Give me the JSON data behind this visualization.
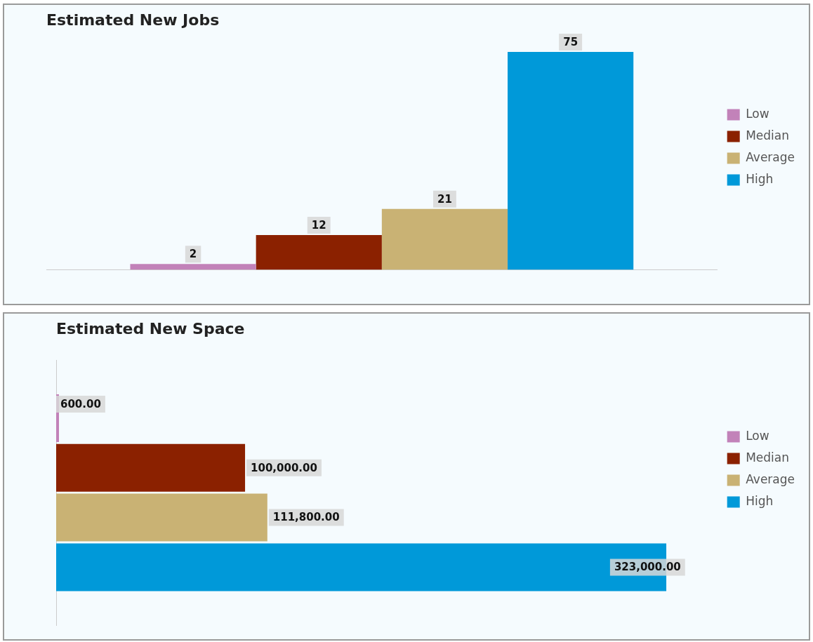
{
  "chart_data": [
    {
      "type": "bar",
      "title": "Estimated New Jobs",
      "categories": [
        null
      ],
      "legend": "right",
      "data_labels": true,
      "series": [
        {
          "name": "Low",
          "color": "#c282b9",
          "values": [
            2
          ]
        },
        {
          "name": "Median",
          "color": "#8b2100",
          "values": [
            12
          ]
        },
        {
          "name": "Average",
          "color": "#c9b274",
          "values": [
            21
          ]
        },
        {
          "name": "High",
          "color": "#0099d9",
          "values": [
            75
          ]
        }
      ]
    },
    {
      "type": "bar",
      "title": "Estimated New Space",
      "categories": [
        null
      ],
      "orientation": "horizontal",
      "legend": "right",
      "series": [
        {
          "name": "Low",
          "color": "#c282b9",
          "values": [
            600
          ],
          "value_labels": [
            "600.00"
          ]
        },
        {
          "name": "Median",
          "color": "#8b2100",
          "values": [
            100000
          ],
          "value_labels": [
            "100,000.00"
          ]
        },
        {
          "name": "Average",
          "color": "#c9b274",
          "values": [
            111800
          ],
          "value_labels": [
            "111,800.00"
          ]
        },
        {
          "name": "High",
          "color": "#0099d9",
          "values": [
            323000
          ],
          "value_labels": [
            "323,000.00"
          ]
        }
      ]
    }
  ]
}
